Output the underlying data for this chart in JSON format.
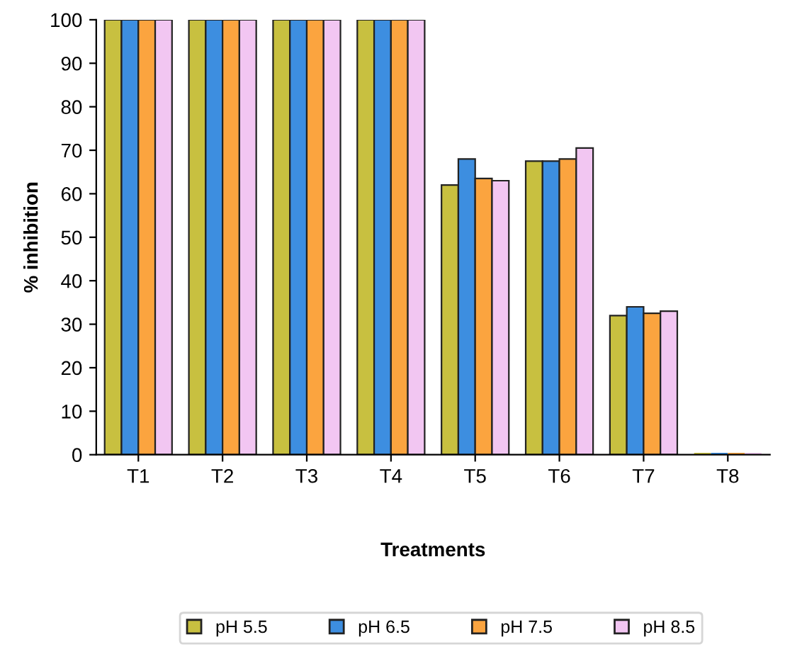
{
  "chart_data": {
    "type": "bar",
    "xlabel": "Treatments",
    "ylabel": "% inhibition",
    "categories": [
      "T1",
      "T2",
      "T3",
      "T4",
      "T5",
      "T6",
      "T7",
      "T8"
    ],
    "series": [
      {
        "name": "pH 5.5",
        "color": "#c8c040",
        "values": [
          100,
          100,
          100,
          100,
          62,
          67.5,
          32,
          0
        ]
      },
      {
        "name": "pH 6.5",
        "color": "#3d8ee0",
        "values": [
          100,
          100,
          100,
          100,
          68,
          67.5,
          34,
          0
        ]
      },
      {
        "name": "pH 7.5",
        "color": "#fba43f",
        "values": [
          100,
          100,
          100,
          100,
          63.5,
          68,
          32.5,
          0
        ]
      },
      {
        "name": "pH 8.5",
        "color": "#f2c6f2",
        "values": [
          100,
          100,
          100,
          100,
          63,
          70.5,
          33,
          0
        ]
      }
    ],
    "ylim": [
      0,
      100
    ],
    "yticks": [
      0,
      10,
      20,
      30,
      40,
      50,
      60,
      70,
      80,
      90,
      100
    ],
    "grid": false,
    "legend": "bottom"
  }
}
